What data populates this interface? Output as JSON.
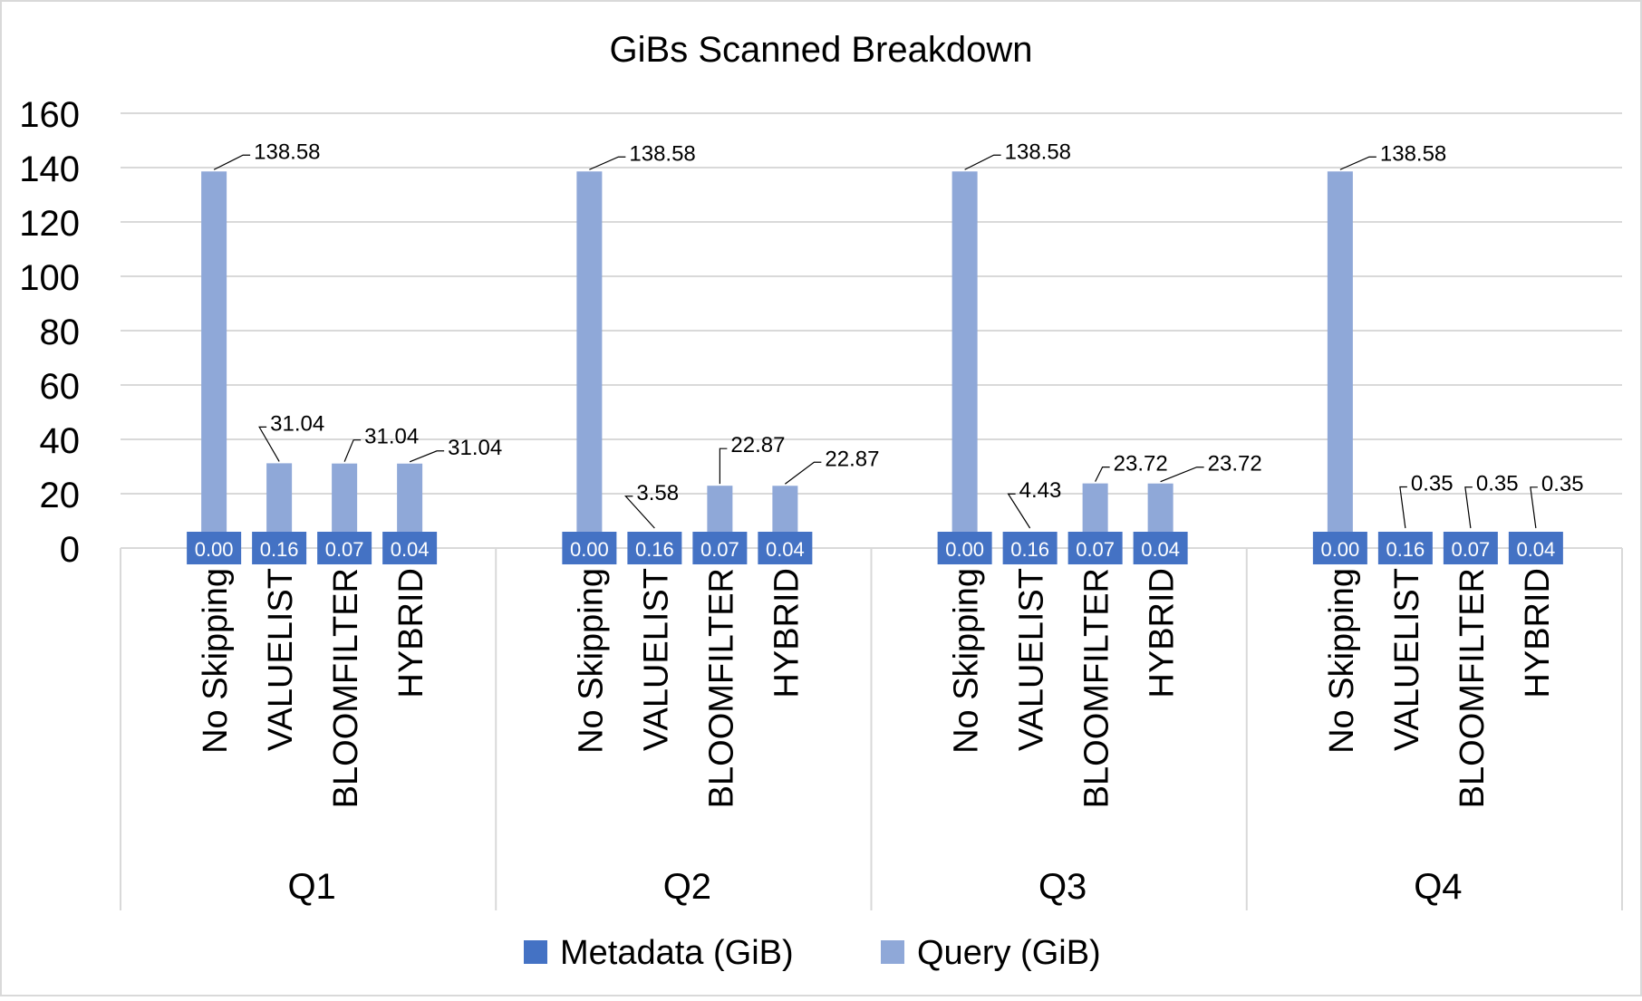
{
  "chart_data": {
    "type": "bar",
    "title": "GiBs Scanned Breakdown",
    "xlabel": "",
    "ylabel": "",
    "ylim": [
      0,
      160
    ],
    "yticks": [
      0,
      20,
      40,
      60,
      80,
      100,
      120,
      140,
      160
    ],
    "grid": true,
    "stacked": true,
    "legend_position": "bottom",
    "groups": [
      "Q1",
      "Q2",
      "Q3",
      "Q4"
    ],
    "categories": [
      "No Skipping",
      "VALUELIST",
      "BLOOMFILTER",
      "HYBRID"
    ],
    "series": [
      {
        "name": "Metadata (GiB)",
        "color": "#4472C4",
        "values": [
          [
            0.0,
            0.16,
            0.07,
            0.04
          ],
          [
            0.0,
            0.16,
            0.07,
            0.04
          ],
          [
            0.0,
            0.16,
            0.07,
            0.04
          ],
          [
            0.0,
            0.16,
            0.07,
            0.04
          ]
        ],
        "labels": [
          [
            "0.00",
            "0.16",
            "0.07",
            "0.04"
          ],
          [
            "0.00",
            "0.16",
            "0.07",
            "0.04"
          ],
          [
            "0.00",
            "0.16",
            "0.07",
            "0.04"
          ],
          [
            "0.00",
            "0.16",
            "0.07",
            "0.04"
          ]
        ]
      },
      {
        "name": "Query  (GiB)",
        "color": "#8FA8D8",
        "values": [
          [
            138.58,
            31.04,
            31.04,
            31.04
          ],
          [
            138.58,
            3.58,
            22.87,
            22.87
          ],
          [
            138.58,
            4.43,
            23.72,
            23.72
          ],
          [
            138.58,
            0.35,
            0.35,
            0.35
          ]
        ],
        "labels": [
          [
            "138.58",
            "31.04",
            "31.04",
            "31.04"
          ],
          [
            "138.58",
            "3.58",
            "22.87",
            "22.87"
          ],
          [
            "138.58",
            "4.43",
            "23.72",
            "23.72"
          ],
          [
            "138.58",
            "0.35",
            "0.35",
            "0.35"
          ]
        ]
      }
    ]
  }
}
